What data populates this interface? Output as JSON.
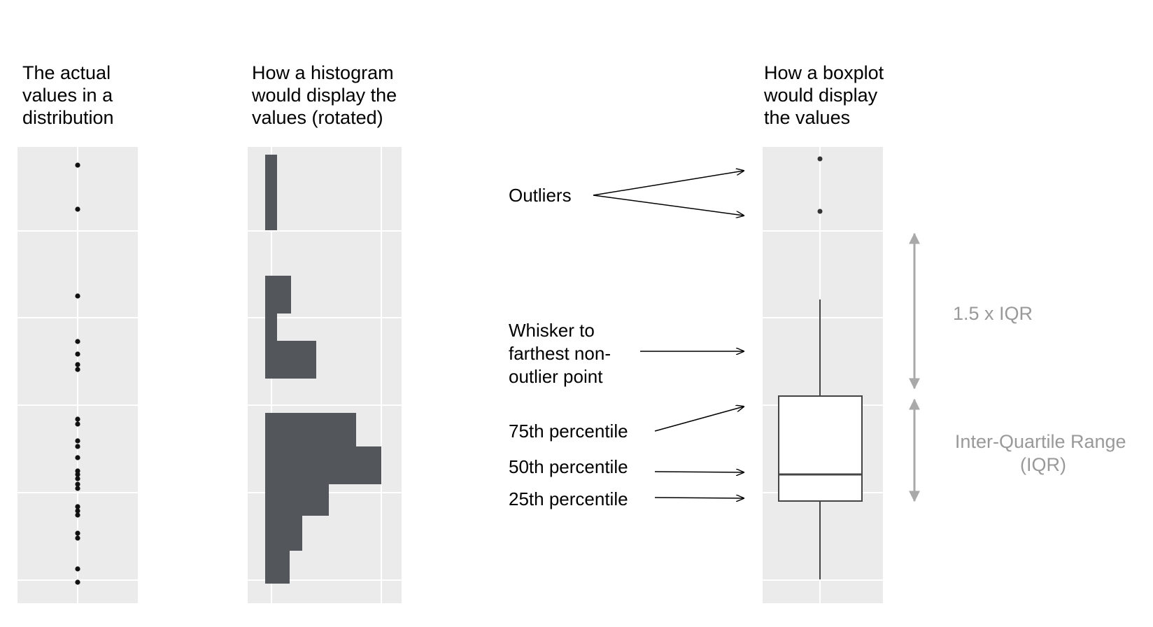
{
  "columns": {
    "values": {
      "title_lines": [
        "The actual",
        "values in a",
        "distribution"
      ]
    },
    "histogram": {
      "title_lines": [
        "How a histogram",
        "would display the",
        "values (rotated)"
      ]
    },
    "boxplot": {
      "title_lines": [
        "How a boxplot",
        "would display",
        "the values"
      ]
    }
  },
  "annotations": {
    "outliers": "Outliers",
    "whisker_lines": [
      "Whisker to",
      "farthest non-",
      "outlier point"
    ],
    "p75": "75th percentile",
    "p50": "50th percentile",
    "p25": "25th percentile",
    "range_15iqr": "1.5 x IQR",
    "iqr_lines": [
      "Inter-Quartile Range",
      "(IQR)"
    ]
  },
  "colors": {
    "panel_bg": "#ebebeb",
    "grid": "#ffffff",
    "bars": "#53565b",
    "points": "#111111",
    "range_arrows": "#a9a9a9",
    "range_text": "#999999"
  }
}
